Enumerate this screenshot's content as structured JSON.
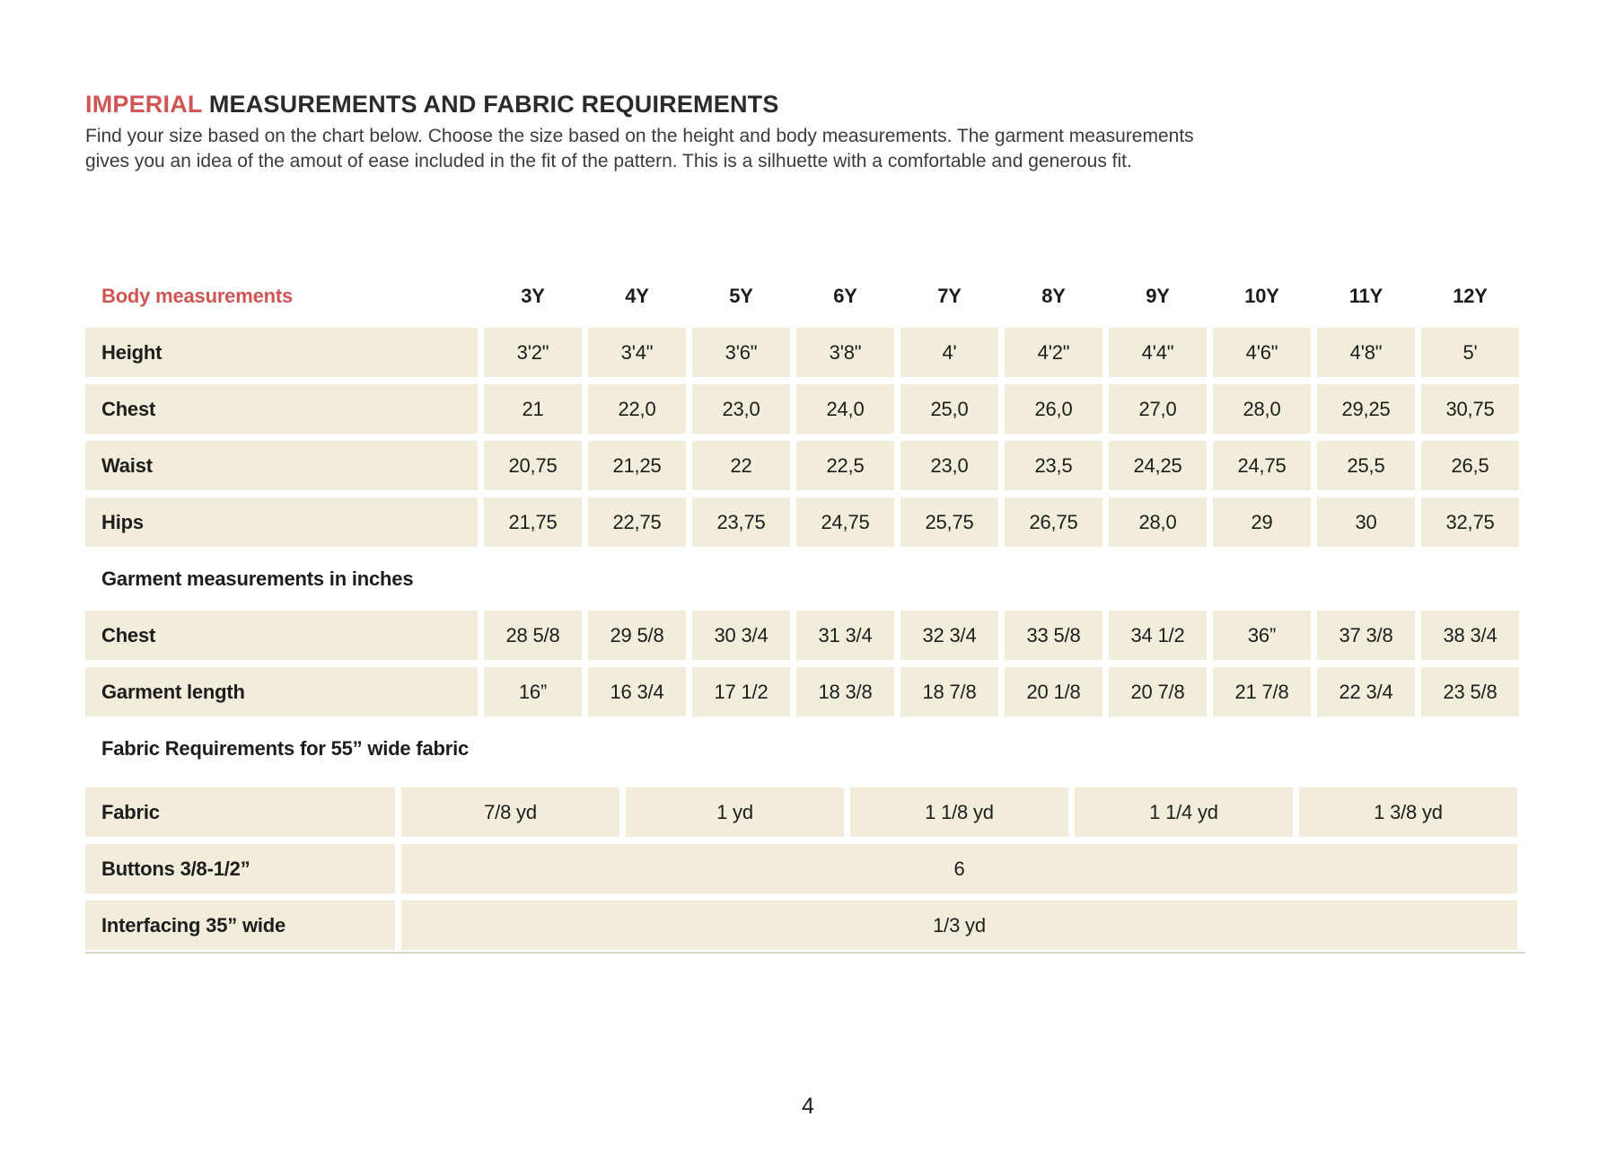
{
  "page": {
    "title_accent": "IMPERIAL",
    "title_rest": " MEASUREMENTS AND FABRIC REQUIREMENTS",
    "intro_line1": "Find your size based on the chart below. Choose the size based on the height and body measurements. The garment measurements",
    "intro_line2": "gives you an idea of the amout of ease included in the fit of the pattern. This is a silhuette with a comfortable and generous fit.",
    "page_number": "4"
  },
  "colors": {
    "accent": "#d05555",
    "cell_background": "#f2ecda"
  },
  "table": {
    "header": {
      "label": "Body measurements",
      "sizes": [
        "3Y",
        "4Y",
        "5Y",
        "6Y",
        "7Y",
        "8Y",
        "9Y",
        "10Y",
        "11Y",
        "12Y"
      ]
    },
    "body_rows": [
      {
        "label": "Height",
        "values": [
          "3'2\"",
          "3'4\"",
          "3'6\"",
          "3'8\"",
          "4'",
          "4'2\"",
          "4'4\"",
          "4'6\"",
          "4'8\"",
          "5'"
        ]
      },
      {
        "label": "Chest",
        "values": [
          "21",
          "22,0",
          "23,0",
          "24,0",
          "25,0",
          "26,0",
          "27,0",
          "28,0",
          "29,25",
          "30,75"
        ]
      },
      {
        "label": "Waist",
        "values": [
          "20,75",
          "21,25",
          "22",
          "22,5",
          "23,0",
          "23,5",
          "24,25",
          "24,75",
          "25,5",
          "26,5"
        ]
      },
      {
        "label": "Hips",
        "values": [
          "21,75",
          "22,75",
          "23,75",
          "24,75",
          "25,75",
          "26,75",
          "28,0",
          "29",
          "30",
          "32,75"
        ]
      }
    ],
    "garment_section_title": "Garment measurements in inches",
    "garment_rows": [
      {
        "label": "Chest",
        "values": [
          "28 5/8",
          "29 5/8",
          "30 3/4",
          "31 3/4",
          "32 3/4",
          "33 5/8",
          "34 1/2",
          "36”",
          "37 3/8",
          "38 3/4"
        ]
      },
      {
        "label": "Garment length",
        "values": [
          "16”",
          "16 3/4",
          "17 1/2",
          "18 3/8",
          "18 7/8",
          "20 1/8",
          "20 7/8",
          "21 7/8",
          "22 3/4",
          "23 5/8"
        ]
      }
    ],
    "fabric_section_title": "Fabric Requirements for  55” wide fabric",
    "fabric_row": {
      "label": "Fabric",
      "values": [
        "7/8 yd",
        "1 yd",
        "1 1/8 yd",
        "1 1/4 yd",
        "1 3/8 yd"
      ]
    },
    "buttons_row": {
      "label": "Buttons 3/8-1/2”",
      "value": "6"
    },
    "interfacing_row": {
      "label": "Interfacing  35” wide",
      "value": "1/3 yd"
    }
  }
}
